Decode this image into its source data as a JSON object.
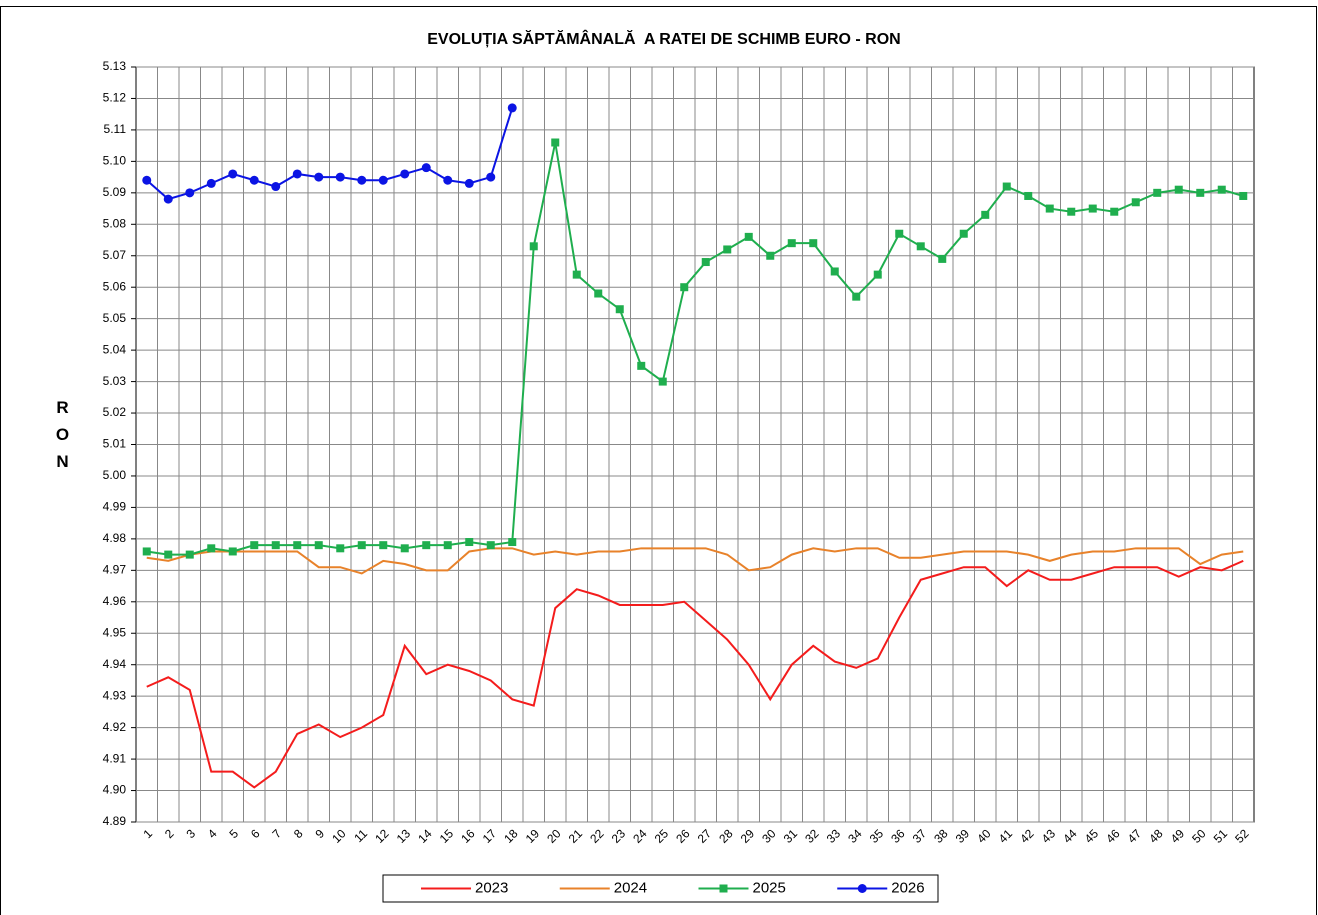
{
  "chart_data": {
    "type": "line",
    "title": "EVOLUȚIA SĂPTĂMÂNALĂ  A RATEI DE SCHIMB EURO - RON",
    "y_label": "RON",
    "categories": [
      "1",
      "2",
      "3",
      "4",
      "5",
      "6",
      "7",
      "8",
      "9",
      "10",
      "11",
      "12",
      "13",
      "14",
      "15",
      "16",
      "17",
      "18",
      "19",
      "20",
      "21",
      "22",
      "23",
      "24",
      "25",
      "26",
      "27",
      "28",
      "29",
      "30",
      "31",
      "32",
      "33",
      "34",
      "35",
      "36",
      "37",
      "38",
      "39",
      "40",
      "41",
      "42",
      "43",
      "44",
      "45",
      "46",
      "47",
      "48",
      "49",
      "50",
      "51",
      "52"
    ],
    "ylim": [
      4.89,
      5.13
    ],
    "yticks": [
      4.89,
      {
        "value": 4.9,
        "label": "4.90"
      },
      4.91,
      4.92,
      4.93,
      4.94,
      4.95,
      4.96,
      4.97,
      4.98,
      4.99,
      {
        "value": 5.0,
        "label": "5.00"
      },
      5.01,
      5.02,
      5.03,
      5.04,
      5.05,
      5.06,
      5.07,
      5.08,
      5.09,
      {
        "value": 5.1,
        "label": "5.10"
      },
      5.11,
      5.12,
      5.13
    ],
    "grid": true,
    "legend": "bottom",
    "series": [
      {
        "name": "2023",
        "color": "#f41c1c",
        "marker": "none",
        "values": [
          4.933,
          4.936,
          4.932,
          4.906,
          4.906,
          4.901,
          4.906,
          4.918,
          4.921,
          4.917,
          4.92,
          4.924,
          4.946,
          4.937,
          4.94,
          4.938,
          4.935,
          4.929,
          4.927,
          4.958,
          4.964,
          4.962,
          4.959,
          4.959,
          4.959,
          4.96,
          4.954,
          4.948,
          4.94,
          4.929,
          4.94,
          4.946,
          4.941,
          4.939,
          4.942,
          4.955,
          4.967,
          4.969,
          4.971,
          4.971,
          4.965,
          4.97,
          4.967,
          4.967,
          4.969,
          4.971,
          4.971,
          4.971,
          4.968,
          4.971,
          4.97,
          4.973
        ]
      },
      {
        "name": "2024",
        "color": "#e8822a",
        "marker": "none",
        "values": [
          4.974,
          4.973,
          4.975,
          4.976,
          4.976,
          4.976,
          4.976,
          4.976,
          4.971,
          4.971,
          4.969,
          4.973,
          4.972,
          4.97,
          4.97,
          4.976,
          4.977,
          4.977,
          4.975,
          4.976,
          4.975,
          4.976,
          4.976,
          4.977,
          4.977,
          4.977,
          4.977,
          4.975,
          4.97,
          4.971,
          4.975,
          4.977,
          4.976,
          4.977,
          4.977,
          4.974,
          4.974,
          4.975,
          4.976,
          4.976,
          4.976,
          4.975,
          4.973,
          4.975,
          4.976,
          4.976,
          4.977,
          4.977,
          4.977,
          4.972,
          4.975,
          4.976
        ]
      },
      {
        "name": "2025",
        "color": "#1fae4e",
        "marker": "square",
        "values": [
          4.976,
          4.975,
          4.975,
          4.977,
          4.976,
          4.978,
          4.978,
          4.978,
          4.978,
          4.977,
          4.978,
          4.978,
          4.977,
          4.978,
          4.978,
          4.979,
          4.978,
          4.979,
          5.073,
          5.106,
          5.064,
          5.058,
          5.053,
          5.035,
          5.03,
          5.06,
          5.068,
          5.072,
          5.076,
          5.07,
          5.074,
          5.074,
          5.065,
          5.057,
          5.064,
          5.077,
          5.073,
          5.069,
          5.077,
          5.083,
          5.092,
          5.089,
          5.085,
          5.084,
          5.085,
          5.084,
          5.087,
          5.09,
          5.091,
          5.09,
          5.091,
          5.089
        ]
      },
      {
        "name": "2026",
        "color": "#0b14e4",
        "marker": "circle",
        "values": [
          5.094,
          5.088,
          5.09,
          5.093,
          5.096,
          5.094,
          5.092,
          5.096,
          5.095,
          5.095,
          5.094,
          5.094,
          5.096,
          5.098,
          5.094,
          5.093,
          5.095,
          5.117,
          null,
          null,
          null,
          null,
          null,
          null,
          null,
          null,
          null,
          null,
          null,
          null,
          null,
          null,
          null,
          null,
          null,
          null,
          null,
          null,
          null,
          null,
          null,
          null,
          null,
          null,
          null,
          null,
          null,
          null,
          null,
          null,
          null,
          null
        ]
      }
    ]
  }
}
